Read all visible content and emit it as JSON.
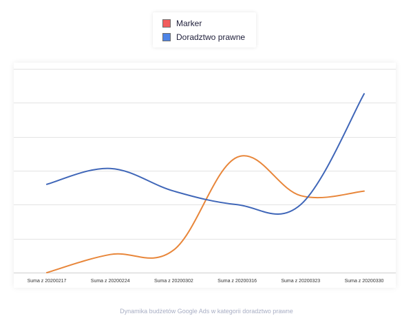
{
  "chart_data": {
    "type": "line",
    "categories": [
      "Suma z 20200217",
      "Suma z 20200224",
      "Suma z 20200302",
      "Suma z 20200316",
      "Suma z 20200323",
      "Suma z 20200330"
    ],
    "series": [
      {
        "name": "Marker",
        "legend_color": "#f25c5c",
        "line_color": "#e8863a",
        "values": [
          0,
          0.8,
          1.0,
          5.1,
          3.4,
          3.6
        ]
      },
      {
        "name": "Doradztwo prawne",
        "legend_color": "#4e84e6",
        "line_color": "#3f66b8",
        "values": [
          3.9,
          4.6,
          3.6,
          3.0,
          3.0,
          7.9
        ]
      }
    ],
    "ylim": [
      0,
      9
    ],
    "grid": true,
    "legend_position": "top-center",
    "caption": "Dynamika budżetów Google Ads w kategorii doradztwo prawne"
  }
}
